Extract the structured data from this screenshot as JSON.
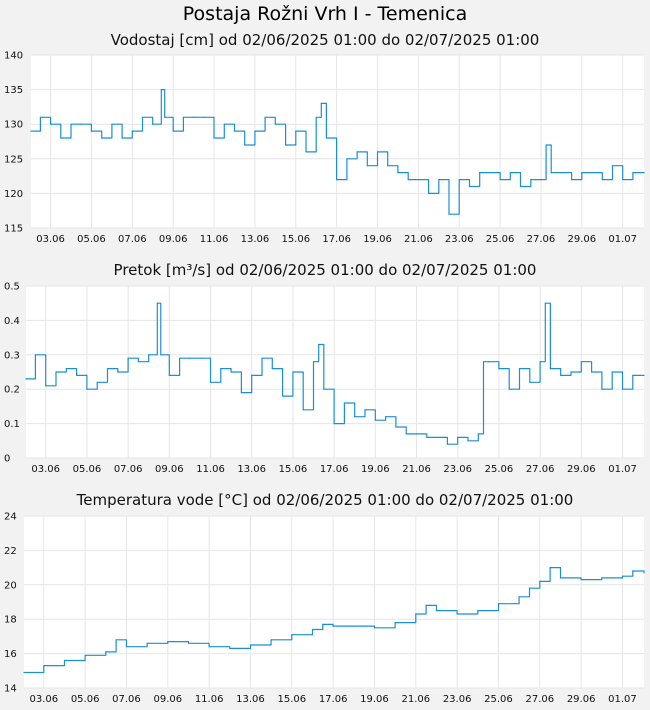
{
  "title": "Postaja Rožni Vrh I - Temenica",
  "colors": {
    "background": "#f2f2f2",
    "plot": "#ffffff",
    "line": "#1a8fd6",
    "grid": "#e6e6e6"
  },
  "chart_data": [
    {
      "type": "line",
      "title": "Vodostaj [cm] od 02/06/2025 01:00 do 02/07/2025 01:00",
      "xlabel": "",
      "ylabel": "",
      "x_ticks": [
        "03.06",
        "05.06",
        "07.06",
        "09.06",
        "11.06",
        "13.06",
        "15.06",
        "17.06",
        "19.06",
        "21.06",
        "23.06",
        "25.06",
        "27.06",
        "29.06",
        "01.07"
      ],
      "y_ticks": [
        "115",
        "120",
        "125",
        "130",
        "135",
        "140"
      ],
      "ylim": [
        115,
        140
      ],
      "x_start": "2025-06-02 01:00",
      "x_end": "2025-07-02 01:00",
      "grid": true,
      "series": [
        {
          "x": [
            "02.06 01:00",
            "02.06 12:00",
            "03.06 00:00",
            "03.06 12:00",
            "04.06 00:00",
            "04.06 12:00",
            "05.06 00:00",
            "05.06 12:00",
            "06.06 00:00",
            "06.06 12:00",
            "07.06 00:00",
            "07.06 12:00",
            "08.06 00:00",
            "08.06 10:00",
            "08.06 14:00",
            "09.06 00:00",
            "09.06 12:00",
            "10.06 00:00",
            "10.06 12:00",
            "11.06 00:00",
            "11.06 12:00",
            "12.06 00:00",
            "12.06 12:00",
            "13.06 00:00",
            "13.06 12:00",
            "14.06 00:00",
            "14.06 12:00",
            "15.06 00:00",
            "15.06 12:00",
            "16.06 00:00",
            "16.06 06:00",
            "16.06 12:00",
            "17.06 00:00",
            "17.06 12:00",
            "18.06 00:00",
            "18.06 12:00",
            "19.06 00:00",
            "19.06 12:00",
            "20.06 00:00",
            "20.06 12:00",
            "21.06 00:00",
            "21.06 12:00",
            "22.06 00:00",
            "22.06 12:00",
            "23.06 00:00",
            "23.06 12:00",
            "24.06 00:00",
            "24.06 12:00",
            "25.06 00:00",
            "25.06 12:00",
            "26.06 00:00",
            "26.06 12:00",
            "27.06 00:00",
            "27.06 06:00",
            "27.06 12:00",
            "28.06 00:00",
            "28.06 12:00",
            "29.06 00:00",
            "29.06 12:00",
            "30.06 00:00",
            "30.06 12:00",
            "01.07 00:00",
            "01.07 12:00",
            "02.07 01:00"
          ],
          "values": [
            129,
            131,
            130,
            128,
            130,
            130,
            129,
            128,
            130,
            128,
            129,
            131,
            130,
            135,
            131,
            129,
            131,
            131,
            131,
            128,
            130,
            129,
            127,
            129,
            131,
            130,
            127,
            129,
            126,
            131,
            133,
            128,
            122,
            125,
            126,
            124,
            126,
            124,
            123,
            122,
            122,
            120,
            122,
            117,
            122,
            121,
            123,
            123,
            122,
            123,
            121,
            122,
            122,
            127,
            123,
            123,
            122,
            123,
            123,
            122,
            124,
            122,
            123,
            123
          ]
        }
      ]
    },
    {
      "type": "line",
      "title": "Pretok [m³/s] od 02/06/2025 01:00 do 02/07/2025 01:00",
      "xlabel": "",
      "ylabel": "",
      "x_ticks": [
        "03.06",
        "05.06",
        "07.06",
        "09.06",
        "11.06",
        "13.06",
        "15.06",
        "17.06",
        "19.06",
        "21.06",
        "23.06",
        "25.06",
        "27.06",
        "29.06",
        "01.07"
      ],
      "y_ticks": [
        "0",
        "0.1",
        "0.2",
        "0.3",
        "0.4",
        "0.5"
      ],
      "ylim": [
        0,
        0.5
      ],
      "x_start": "2025-06-02 01:00",
      "x_end": "2025-07-02 01:00",
      "grid": true,
      "series": [
        {
          "x": [
            "02.06 01:00",
            "02.06 12:00",
            "03.06 00:00",
            "03.06 12:00",
            "04.06 00:00",
            "04.06 12:00",
            "05.06 00:00",
            "05.06 12:00",
            "06.06 00:00",
            "06.06 12:00",
            "07.06 00:00",
            "07.06 12:00",
            "08.06 00:00",
            "08.06 10:00",
            "08.06 14:00",
            "09.06 00:00",
            "09.06 12:00",
            "10.06 00:00",
            "10.06 12:00",
            "11.06 00:00",
            "11.06 12:00",
            "12.06 00:00",
            "12.06 12:00",
            "13.06 00:00",
            "13.06 12:00",
            "14.06 00:00",
            "14.06 12:00",
            "15.06 00:00",
            "15.06 12:00",
            "16.06 00:00",
            "16.06 06:00",
            "16.06 12:00",
            "17.06 00:00",
            "17.06 12:00",
            "18.06 00:00",
            "18.06 12:00",
            "19.06 00:00",
            "19.06 12:00",
            "20.06 00:00",
            "20.06 12:00",
            "21.06 00:00",
            "21.06 12:00",
            "22.06 00:00",
            "22.06 12:00",
            "23.06 00:00",
            "23.06 12:00",
            "24.06 00:00",
            "24.06 06:00",
            "24.06 12:00",
            "25.06 00:00",
            "25.06 12:00",
            "26.06 00:00",
            "26.06 12:00",
            "27.06 00:00",
            "27.06 06:00",
            "27.06 12:00",
            "28.06 00:00",
            "28.06 12:00",
            "29.06 00:00",
            "29.06 12:00",
            "30.06 00:00",
            "30.06 12:00",
            "01.07 00:00",
            "01.07 12:00",
            "02.07 01:00"
          ],
          "values": [
            0.23,
            0.3,
            0.21,
            0.25,
            0.26,
            0.24,
            0.2,
            0.22,
            0.26,
            0.25,
            0.29,
            0.28,
            0.3,
            0.45,
            0.3,
            0.24,
            0.29,
            0.29,
            0.29,
            0.22,
            0.26,
            0.25,
            0.19,
            0.24,
            0.29,
            0.26,
            0.18,
            0.25,
            0.14,
            0.28,
            0.33,
            0.2,
            0.1,
            0.16,
            0.12,
            0.14,
            0.11,
            0.12,
            0.09,
            0.07,
            0.07,
            0.06,
            0.06,
            0.04,
            0.06,
            0.05,
            0.07,
            0.28,
            0.28,
            0.26,
            0.2,
            0.26,
            0.22,
            0.28,
            0.45,
            0.26,
            0.24,
            0.25,
            0.28,
            0.25,
            0.2,
            0.25,
            0.2,
            0.24,
            0.24
          ]
        }
      ]
    },
    {
      "type": "line",
      "title": "Temperatura vode [°C] od 02/06/2025 01:00 do 02/07/2025 01:00",
      "xlabel": "",
      "ylabel": "",
      "x_ticks": [
        "03.06",
        "05.06",
        "07.06",
        "09.06",
        "11.06",
        "13.06",
        "15.06",
        "17.06",
        "19.06",
        "21.06",
        "23.06",
        "25.06",
        "27.06",
        "29.06",
        "01.07"
      ],
      "y_ticks": [
        "14",
        "16",
        "18",
        "20",
        "22",
        "24"
      ],
      "ylim": [
        14,
        24
      ],
      "x_start": "2025-06-02 01:00",
      "x_end": "2025-07-02 01:00",
      "grid": true,
      "series": [
        {
          "x": [
            "02.06 01:00",
            "03.06 00:00",
            "04.06 00:00",
            "05.06 00:00",
            "06.06 00:00",
            "06.06 12:00",
            "07.06 00:00",
            "08.06 00:00",
            "09.06 00:00",
            "10.06 00:00",
            "11.06 00:00",
            "12.06 00:00",
            "13.06 00:00",
            "14.06 00:00",
            "15.06 00:00",
            "16.06 00:00",
            "16.06 12:00",
            "17.06 00:00",
            "18.06 00:00",
            "19.06 00:00",
            "20.06 00:00",
            "21.06 00:00",
            "21.06 12:00",
            "22.06 00:00",
            "23.06 00:00",
            "24.06 00:00",
            "25.06 00:00",
            "26.06 00:00",
            "26.06 12:00",
            "27.06 00:00",
            "27.06 12:00",
            "28.06 00:00",
            "29.06 00:00",
            "30.06 00:00",
            "01.07 00:00",
            "01.07 12:00",
            "02.07 01:00"
          ],
          "values": [
            14.9,
            15.3,
            15.6,
            15.9,
            16.1,
            16.8,
            16.4,
            16.6,
            16.7,
            16.6,
            16.4,
            16.3,
            16.5,
            16.8,
            17.1,
            17.4,
            17.7,
            17.6,
            17.6,
            17.5,
            17.8,
            18.3,
            18.8,
            18.5,
            18.3,
            18.5,
            18.9,
            19.3,
            19.8,
            20.2,
            21,
            20.4,
            20.3,
            20.4,
            20.5,
            20.8,
            20.7
          ]
        }
      ]
    }
  ]
}
